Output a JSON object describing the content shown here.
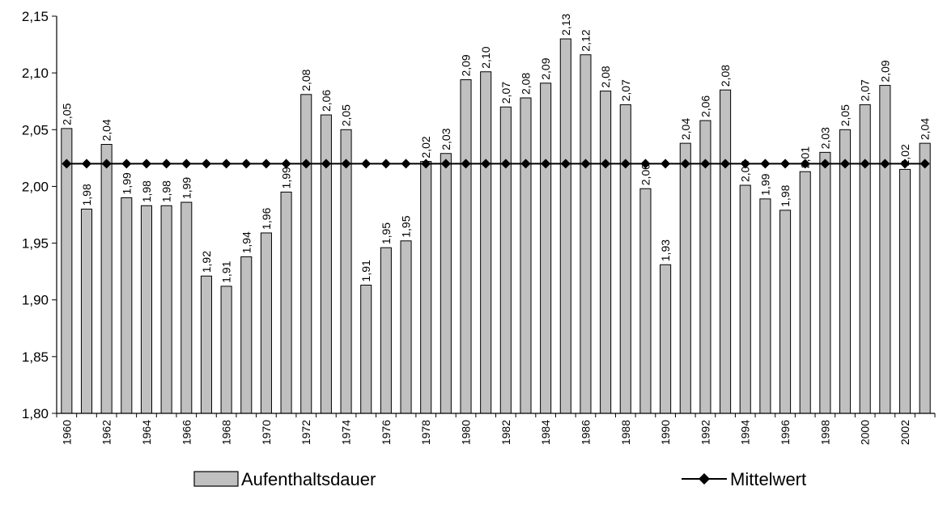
{
  "chart_data": {
    "type": "bar",
    "categories": [
      "1960",
      "1961",
      "1962",
      "1963",
      "1964",
      "1965",
      "1966",
      "1967",
      "1968",
      "1969",
      "1970",
      "1971",
      "1972",
      "1973",
      "1974",
      "1975",
      "1976",
      "1977",
      "1978",
      "1979",
      "1980",
      "1981",
      "1982",
      "1983",
      "1984",
      "1985",
      "1986",
      "1987",
      "1988",
      "1989",
      "1990",
      "1991",
      "1992",
      "1993",
      "1994",
      "1995",
      "1996",
      "1997",
      "1998",
      "1999",
      "2000",
      "2001",
      "2002",
      "2003"
    ],
    "x_tick_labels": [
      "1960",
      "1962",
      "1964",
      "1966",
      "1968",
      "1970",
      "1972",
      "1974",
      "1976",
      "1978",
      "1980",
      "1982",
      "1984",
      "1986",
      "1988",
      "1990",
      "1992",
      "1994",
      "1996",
      "1998",
      "2000",
      "2002"
    ],
    "series": [
      {
        "name": "Aufenthaltsdauer",
        "type": "bar",
        "color": "#c0c0c0",
        "values": [
          2.051,
          1.98,
          2.037,
          1.99,
          1.983,
          1.983,
          1.986,
          1.921,
          1.912,
          1.938,
          1.959,
          1.995,
          2.081,
          2.063,
          2.05,
          1.913,
          1.946,
          1.952,
          2.022,
          2.029,
          2.094,
          2.101,
          2.07,
          2.078,
          2.091,
          2.13,
          2.116,
          2.084,
          2.072,
          1.998,
          1.931,
          2.038,
          2.058,
          2.085,
          2.001,
          1.989,
          1.979,
          2.013,
          2.03,
          2.05,
          2.072,
          2.089,
          2.015,
          2.038
        ],
        "labels": [
          "2,05",
          "1,98",
          "2,04",
          "1,99",
          "1,98",
          "1,98",
          "1,99",
          "1,92",
          "1,91",
          "1,94",
          "1,96",
          "1,99",
          "2,08",
          "2,06",
          "2,05",
          "1,91",
          "1,95",
          "1,95",
          "2,02",
          "2,03",
          "2,09",
          "2,10",
          "2,07",
          "2,08",
          "2,09",
          "2,13",
          "2,12",
          "2,08",
          "2,07",
          "2,00",
          "1,93",
          "2,04",
          "2,06",
          "2,08",
          "2,00",
          "1,99",
          "1,98",
          "2,01",
          "2,03",
          "2,05",
          "2,07",
          "2,09",
          "2,02",
          "2,04"
        ]
      },
      {
        "name": "Mittelwert",
        "type": "line",
        "marker": "diamond",
        "color": "#000000",
        "value": 2.02
      }
    ],
    "y_tick_labels": [
      "1,80",
      "1,85",
      "1,90",
      "1,95",
      "2,00",
      "2,05",
      "2,10",
      "2,15"
    ],
    "y_ticks": [
      1.8,
      1.85,
      1.9,
      1.95,
      2.0,
      2.05,
      2.1,
      2.15
    ],
    "ylim": [
      1.8,
      2.15
    ],
    "legend_position": "bottom",
    "grid": false
  }
}
